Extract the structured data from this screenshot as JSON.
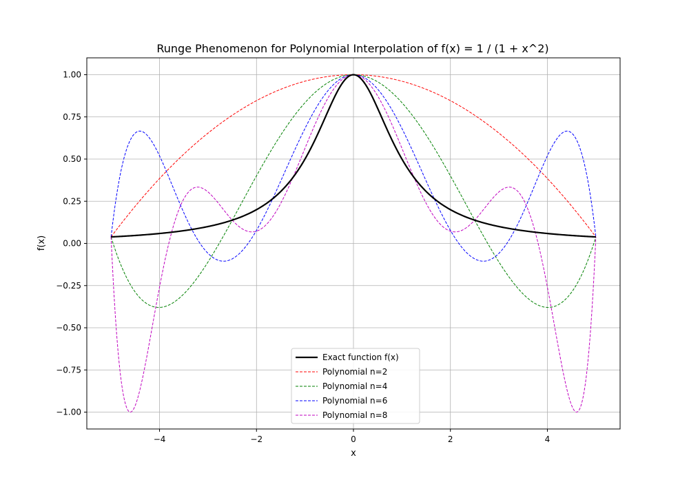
{
  "chart_data": {
    "type": "line",
    "title": "Runge Phenomenon for Polynomial Interpolation of f(x) = 1 / (1 + x^2)",
    "xlabel": "x",
    "ylabel": "f(x)",
    "xlim": [
      -5.5,
      5.5
    ],
    "ylim": [
      -1.1,
      1.1
    ],
    "x_ticks": [
      -4,
      -2,
      0,
      2,
      4
    ],
    "x_tick_labels": [
      "−4",
      "−2",
      "0",
      "2",
      "4"
    ],
    "y_ticks": [
      -1.0,
      -0.75,
      -0.5,
      -0.25,
      0.0,
      0.25,
      0.5,
      0.75,
      1.0
    ],
    "y_tick_labels": [
      "−1.00",
      "−0.75",
      "−0.50",
      "−0.25",
      "0.00",
      "0.25",
      "0.50",
      "0.75",
      "1.00"
    ],
    "grid": true,
    "legend_position": "bottom-center",
    "function": "1 / (1 + x^2)",
    "x_range": [
      -5,
      5
    ],
    "series": [
      {
        "name": "Exact function f(x)",
        "color": "#000000",
        "style": "solid",
        "kind": "exact"
      },
      {
        "name": "Polynomial n=2",
        "color": "#ff0000",
        "style": "dashed",
        "kind": "interp",
        "degree": 2
      },
      {
        "name": "Polynomial n=4",
        "color": "#008000",
        "style": "dashed",
        "kind": "interp",
        "degree": 4
      },
      {
        "name": "Polynomial n=6",
        "color": "#0000ff",
        "style": "dashed",
        "kind": "interp",
        "degree": 6
      },
      {
        "name": "Polynomial n=8",
        "color": "#bf00bf",
        "style": "dashed",
        "kind": "interp",
        "degree": 8
      }
    ]
  }
}
